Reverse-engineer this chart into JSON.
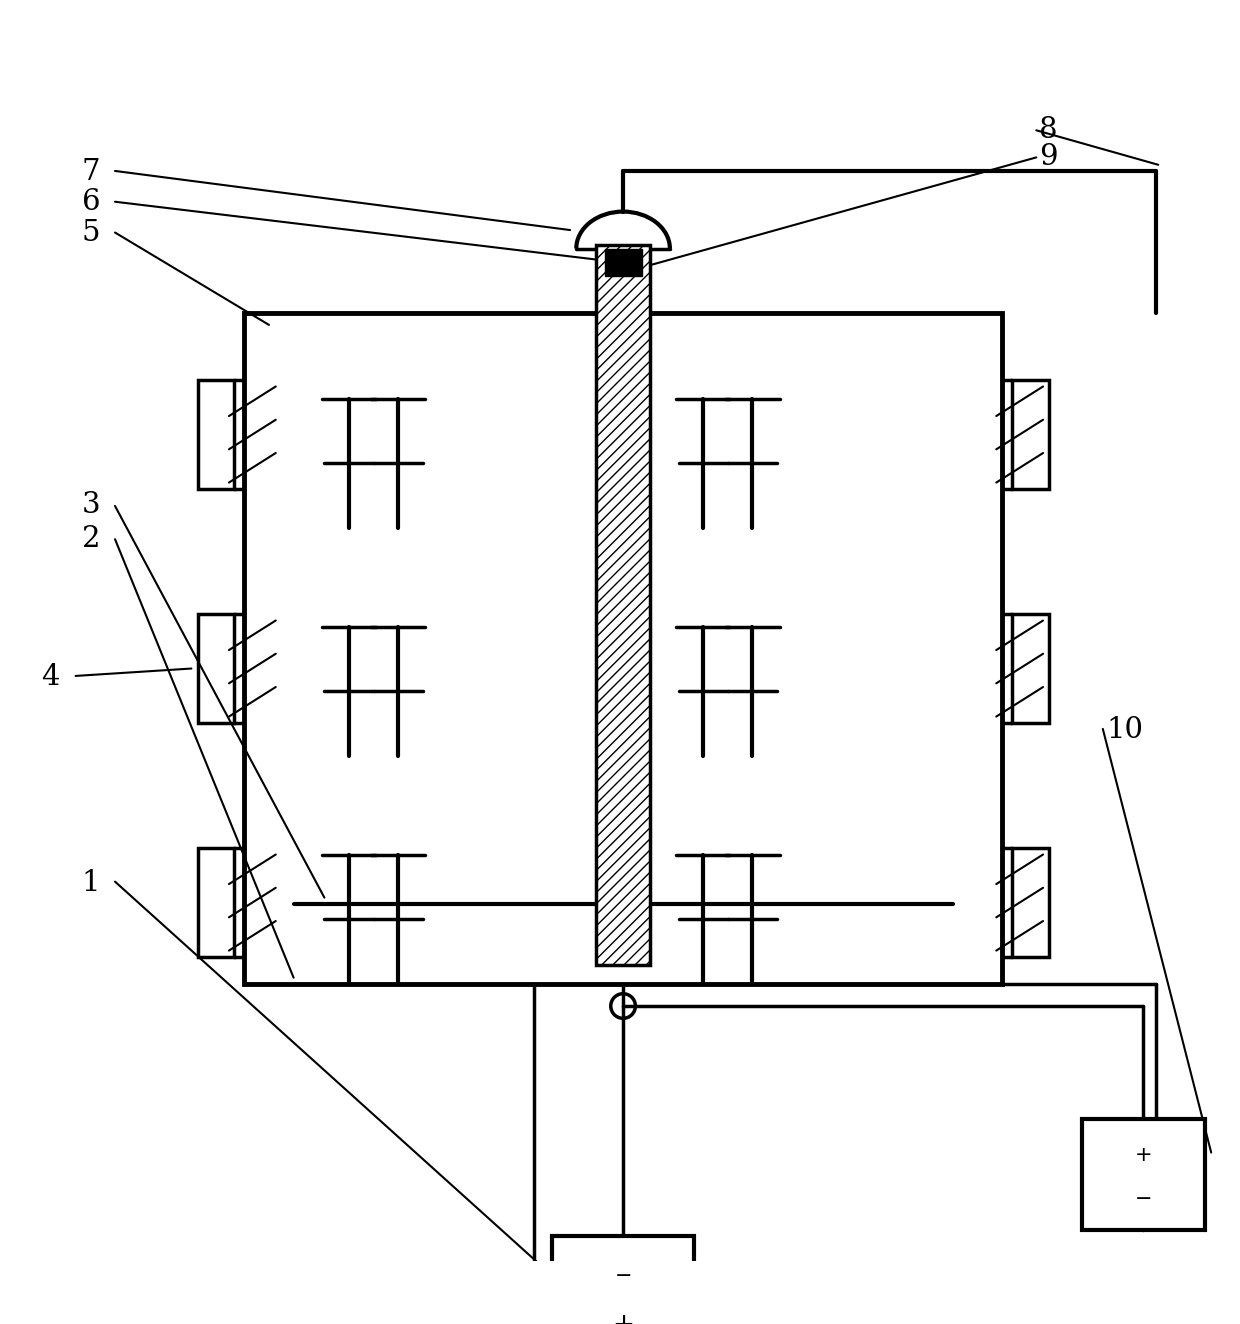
{
  "background": "#ffffff",
  "line_color": "#000000",
  "lw": 2.5,
  "lw_thin": 1.5,
  "lw_thick": 3.5
}
